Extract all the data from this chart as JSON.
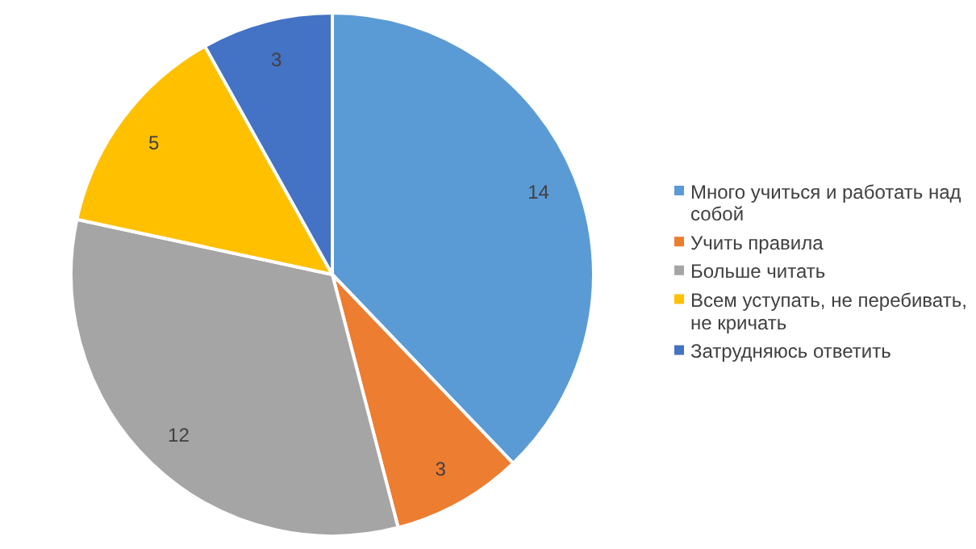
{
  "chart_data": {
    "type": "pie",
    "categories": [
      "Много учиться и работать над собой",
      "Учить правила",
      "Больше читать",
      "Всем уступать, не перебивать, не кричать",
      "Затрудняюсь ответить"
    ],
    "values": [
      14,
      3,
      12,
      5,
      3
    ],
    "colors": [
      "#5b9bd5",
      "#ed7d31",
      "#a5a5a5",
      "#ffc000",
      "#4472c4"
    ],
    "data_labels": true,
    "legend": "right"
  }
}
